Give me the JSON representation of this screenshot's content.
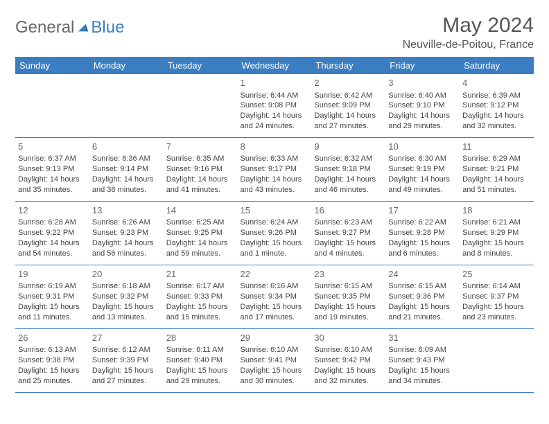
{
  "logo": {
    "text1": "General",
    "text2": "Blue"
  },
  "title": "May 2024",
  "location": "Neuville-de-Poitou, France",
  "colors": {
    "header_bg": "#3a7ec1",
    "header_text": "#ffffff",
    "border": "#3a7ec1",
    "body_text": "#444444",
    "title_text": "#555555"
  },
  "day_names": [
    "Sunday",
    "Monday",
    "Tuesday",
    "Wednesday",
    "Thursday",
    "Friday",
    "Saturday"
  ],
  "weeks": [
    [
      null,
      null,
      null,
      {
        "n": "1",
        "sr": "6:44 AM",
        "ss": "9:08 PM",
        "dl": "14 hours and 24 minutes."
      },
      {
        "n": "2",
        "sr": "6:42 AM",
        "ss": "9:09 PM",
        "dl": "14 hours and 27 minutes."
      },
      {
        "n": "3",
        "sr": "6:40 AM",
        "ss": "9:10 PM",
        "dl": "14 hours and 29 minutes."
      },
      {
        "n": "4",
        "sr": "6:39 AM",
        "ss": "9:12 PM",
        "dl": "14 hours and 32 minutes."
      }
    ],
    [
      {
        "n": "5",
        "sr": "6:37 AM",
        "ss": "9:13 PM",
        "dl": "14 hours and 35 minutes."
      },
      {
        "n": "6",
        "sr": "6:36 AM",
        "ss": "9:14 PM",
        "dl": "14 hours and 38 minutes."
      },
      {
        "n": "7",
        "sr": "6:35 AM",
        "ss": "9:16 PM",
        "dl": "14 hours and 41 minutes."
      },
      {
        "n": "8",
        "sr": "6:33 AM",
        "ss": "9:17 PM",
        "dl": "14 hours and 43 minutes."
      },
      {
        "n": "9",
        "sr": "6:32 AM",
        "ss": "9:18 PM",
        "dl": "14 hours and 46 minutes."
      },
      {
        "n": "10",
        "sr": "6:30 AM",
        "ss": "9:19 PM",
        "dl": "14 hours and 49 minutes."
      },
      {
        "n": "11",
        "sr": "6:29 AM",
        "ss": "9:21 PM",
        "dl": "14 hours and 51 minutes."
      }
    ],
    [
      {
        "n": "12",
        "sr": "6:28 AM",
        "ss": "9:22 PM",
        "dl": "14 hours and 54 minutes."
      },
      {
        "n": "13",
        "sr": "6:26 AM",
        "ss": "9:23 PM",
        "dl": "14 hours and 56 minutes."
      },
      {
        "n": "14",
        "sr": "6:25 AM",
        "ss": "9:25 PM",
        "dl": "14 hours and 59 minutes."
      },
      {
        "n": "15",
        "sr": "6:24 AM",
        "ss": "9:26 PM",
        "dl": "15 hours and 1 minute."
      },
      {
        "n": "16",
        "sr": "6:23 AM",
        "ss": "9:27 PM",
        "dl": "15 hours and 4 minutes."
      },
      {
        "n": "17",
        "sr": "6:22 AM",
        "ss": "9:28 PM",
        "dl": "15 hours and 6 minutes."
      },
      {
        "n": "18",
        "sr": "6:21 AM",
        "ss": "9:29 PM",
        "dl": "15 hours and 8 minutes."
      }
    ],
    [
      {
        "n": "19",
        "sr": "6:19 AM",
        "ss": "9:31 PM",
        "dl": "15 hours and 11 minutes."
      },
      {
        "n": "20",
        "sr": "6:18 AM",
        "ss": "9:32 PM",
        "dl": "15 hours and 13 minutes."
      },
      {
        "n": "21",
        "sr": "6:17 AM",
        "ss": "9:33 PM",
        "dl": "15 hours and 15 minutes."
      },
      {
        "n": "22",
        "sr": "6:16 AM",
        "ss": "9:34 PM",
        "dl": "15 hours and 17 minutes."
      },
      {
        "n": "23",
        "sr": "6:15 AM",
        "ss": "9:35 PM",
        "dl": "15 hours and 19 minutes."
      },
      {
        "n": "24",
        "sr": "6:15 AM",
        "ss": "9:36 PM",
        "dl": "15 hours and 21 minutes."
      },
      {
        "n": "25",
        "sr": "6:14 AM",
        "ss": "9:37 PM",
        "dl": "15 hours and 23 minutes."
      }
    ],
    [
      {
        "n": "26",
        "sr": "6:13 AM",
        "ss": "9:38 PM",
        "dl": "15 hours and 25 minutes."
      },
      {
        "n": "27",
        "sr": "6:12 AM",
        "ss": "9:39 PM",
        "dl": "15 hours and 27 minutes."
      },
      {
        "n": "28",
        "sr": "6:11 AM",
        "ss": "9:40 PM",
        "dl": "15 hours and 29 minutes."
      },
      {
        "n": "29",
        "sr": "6:10 AM",
        "ss": "9:41 PM",
        "dl": "15 hours and 30 minutes."
      },
      {
        "n": "30",
        "sr": "6:10 AM",
        "ss": "9:42 PM",
        "dl": "15 hours and 32 minutes."
      },
      {
        "n": "31",
        "sr": "6:09 AM",
        "ss": "9:43 PM",
        "dl": "15 hours and 34 minutes."
      },
      null
    ]
  ],
  "labels": {
    "sunrise": "Sunrise: ",
    "sunset": "Sunset: ",
    "daylight": "Daylight: "
  }
}
